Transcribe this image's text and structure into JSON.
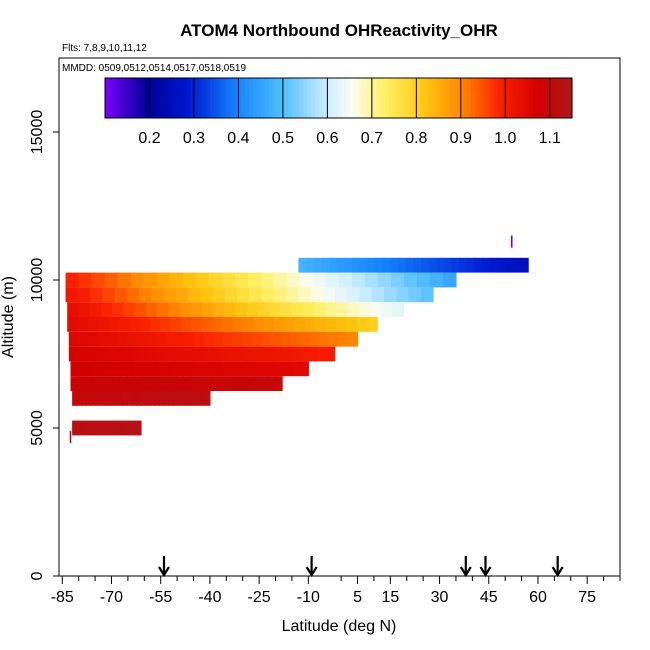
{
  "chart_data": {
    "type": "heatmap",
    "title": "ATOM4 Northbound OHReactivity_OHR",
    "flights_text": "Flts: 7,8,9,10,11,12",
    "mmdd_text": "MMDD: 0509,0512,0514,0517,0518,0519",
    "xlabel": "Latitude (deg N)",
    "ylabel": "Altitude (m)",
    "xlim": [
      -86,
      85
    ],
    "ylim": [
      0,
      17500
    ],
    "x_ticks": [
      -85,
      -70,
      -55,
      -40,
      -25,
      -10,
      5,
      15,
      30,
      45,
      60,
      75
    ],
    "x_minor_ticks": [
      -80,
      -75,
      -65,
      -60,
      -50,
      -45,
      -35,
      -30,
      -20,
      -15,
      0,
      10,
      20,
      25,
      35,
      40,
      50,
      55,
      65,
      70,
      80,
      85
    ],
    "y_ticks": [
      0,
      5000,
      10000,
      15000
    ],
    "colorbar": {
      "min": 0.1,
      "max": 1.15,
      "ticks": [
        0.2,
        0.3,
        0.4,
        0.5,
        0.6,
        0.7,
        0.8,
        0.9,
        1.0,
        1.1
      ],
      "tick_labels": [
        "0.2",
        "0.3",
        "0.4",
        "0.5",
        "0.6",
        "0.7",
        "0.8",
        "0.9",
        "1.0",
        "1.1"
      ]
    },
    "flight_arrows_lat": [
      -54,
      -9,
      38,
      44,
      66
    ],
    "rows": [
      {
        "alt": 10000,
        "alt_step": 500,
        "lat_start": -84,
        "lat_end": 35,
        "v_start": 1.0,
        "v_end": 0.45
      },
      {
        "alt": 9500,
        "alt_step": 500,
        "lat_start": -84,
        "lat_end": 28,
        "v_start": 1.02,
        "v_end": 0.5
      },
      {
        "alt": 9000,
        "alt_step": 500,
        "lat_start": -83.5,
        "lat_end": 19,
        "v_start": 1.04,
        "v_end": 0.62
      },
      {
        "alt": 8500,
        "alt_step": 500,
        "lat_start": -83.5,
        "lat_end": 11,
        "v_start": 1.05,
        "v_end": 0.8
      },
      {
        "alt": 8000,
        "alt_step": 500,
        "lat_start": -83,
        "lat_end": 5,
        "v_start": 1.06,
        "v_end": 0.9
      },
      {
        "alt": 7500,
        "alt_step": 500,
        "lat_start": -83,
        "lat_end": -2,
        "v_start": 1.07,
        "v_end": 1.0
      },
      {
        "alt": 7000,
        "alt_step": 500,
        "lat_start": -82.5,
        "lat_end": -10,
        "v_start": 1.08,
        "v_end": 1.05
      },
      {
        "alt": 6500,
        "alt_step": 500,
        "lat_start": -82.5,
        "lat_end": -18,
        "v_start": 1.09,
        "v_end": 1.1
      },
      {
        "alt": 6000,
        "alt_step": 500,
        "lat_start": -82,
        "lat_end": -40,
        "v_start": 1.1,
        "v_end": 1.12
      },
      {
        "alt": 5000,
        "alt_step": 500,
        "lat_start": -82,
        "lat_end": -61,
        "v_start": 1.12,
        "v_end": 1.13
      },
      {
        "alt": 10500,
        "alt_step": 500,
        "lat_start": -13,
        "lat_end": 57,
        "v_start": 0.48,
        "v_end": 0.25
      }
    ],
    "isolated_points": [
      {
        "lat": -82.5,
        "alt": 4700,
        "value": 1.12
      },
      {
        "lat": 52,
        "alt": 11300,
        "value": 0.12
      }
    ]
  }
}
